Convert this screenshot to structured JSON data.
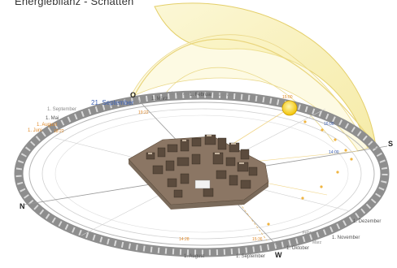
{
  "title": "Energiebilanz - Schatten",
  "compass": {
    "north": "N",
    "east": "O",
    "south": "S",
    "west": "W"
  },
  "month_labels_top": [
    "21. September",
    "1. September",
    "1. August",
    "1. Juni",
    "1. Mai",
    "1. März",
    "1. November",
    "1. Februar",
    "1. Januar"
  ],
  "month_labels_bottom": [
    "1. Dezember",
    "1. November",
    "1. Oktober",
    "1. September",
    "1. August",
    "März",
    "Februar"
  ],
  "time_labels": [
    "14:00",
    "15:00",
    "16:00",
    "18:22",
    "19:22",
    "14:28",
    "15:36"
  ],
  "colors": {
    "sun_path_fill": "#f6eea0",
    "sun_path_stroke": "#e4cf6a",
    "sun": "#f2c200",
    "ring_dark": "#8e8e8e",
    "ring_light": "#d7d7d7",
    "blue_label": "#3a5fb5",
    "orange_label": "#e08a2a"
  }
}
